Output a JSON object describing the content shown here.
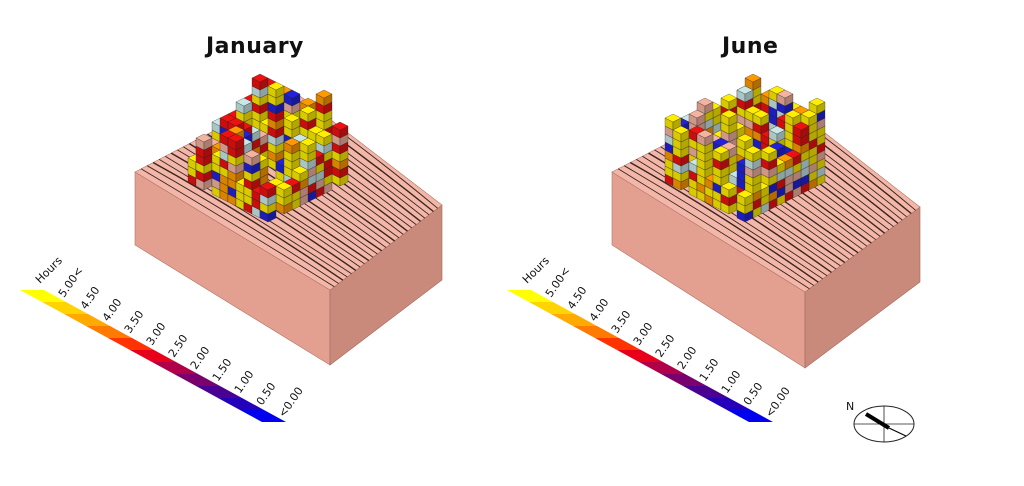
{
  "panels": [
    {
      "title": "January"
    },
    {
      "title": "June"
    }
  ],
  "legend": {
    "title": "Hours",
    "labels": [
      "5.00<",
      "4.50",
      "4.00",
      "3.50",
      "3.00",
      "2.50",
      "2.00",
      "1.50",
      "1.00",
      "0.50",
      "<0.00"
    ],
    "colors": [
      "#ffff00",
      "#ffd400",
      "#ffaa00",
      "#ff7a00",
      "#ff3300",
      "#e8001a",
      "#b0004a",
      "#7a006e",
      "#4a0090",
      "#2400bb",
      "#0000ee"
    ]
  },
  "compass": {
    "label": "N"
  },
  "colors": {
    "terrain_top": "#f2b7a8",
    "terrain_left": "#e3a091",
    "terrain_front": "#c98a7c",
    "contour": "#3a2420"
  },
  "building_palette": [
    "#ffee00",
    "#ffee00",
    "#ffee00",
    "#ee1111",
    "#ee1111",
    "#2222dd",
    "#ff9900",
    "#f4b2a0",
    "#c8e8e8"
  ]
}
